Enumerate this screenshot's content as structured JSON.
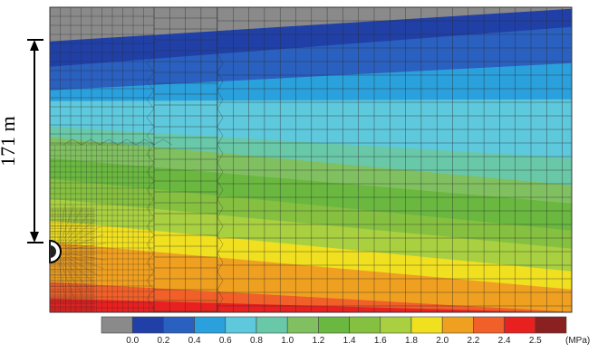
{
  "dimension": {
    "label": "171 m"
  },
  "legend": {
    "unit": "(MPa)",
    "colors": [
      "#8a8a8a",
      "#2040a8",
      "#2a60c0",
      "#2aa0dc",
      "#5ec8dc",
      "#68c8a8",
      "#80c060",
      "#6ab840",
      "#86c040",
      "#a8d040",
      "#f0e020",
      "#f0a020",
      "#f06028",
      "#e82020",
      "#8a2020"
    ],
    "tick_labels": [
      "0.0",
      "0.2",
      "0.4",
      "0.6",
      "0.8",
      "1.0",
      "1.2",
      "1.4",
      "1.6",
      "1.8",
      "2.0",
      "2.2",
      "2.4",
      "2.5"
    ]
  }
}
